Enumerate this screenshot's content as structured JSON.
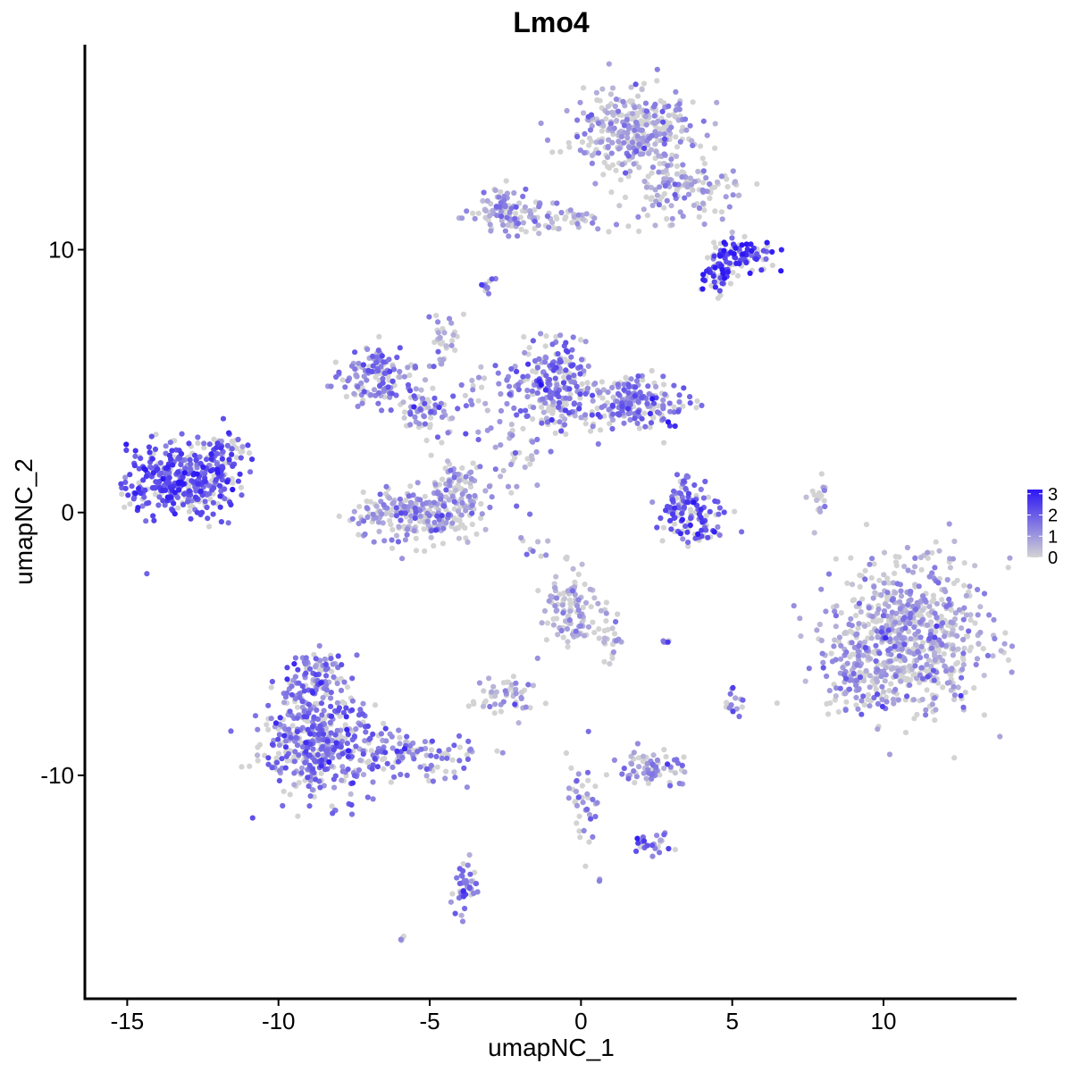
{
  "chart_data": {
    "type": "scatter",
    "title": "Lmo4",
    "xlabel": "umapNC_1",
    "ylabel": "umapNC_2",
    "xlim": [
      -16.4,
      14.4
    ],
    "ylim": [
      -18.5,
      17.8
    ],
    "x_ticks": [
      -15,
      -10,
      -5,
      0,
      5,
      10
    ],
    "x_tick_labels": [
      "-15",
      "-10",
      "-5",
      "0",
      "5",
      "10"
    ],
    "y_ticks": [
      -10,
      0,
      10
    ],
    "y_tick_labels": [
      "-10",
      "0",
      "10"
    ],
    "grid": false,
    "color_scale": {
      "low": "#d3d3d3",
      "high": "#2d17f4",
      "min": 0,
      "max": 3.2,
      "legend_ticks": [
        0,
        1,
        2,
        3
      ],
      "legend_tick_labels": [
        "0",
        "1",
        "2",
        "3"
      ],
      "legend_position": "right"
    },
    "clusters": [
      {
        "cx": -13.3,
        "cy": 1.2,
        "sx": 0.85,
        "sy": 0.75,
        "n": 380,
        "expr": 2.2
      },
      {
        "cx": -12.0,
        "cy": 1.9,
        "sx": 0.35,
        "sy": 0.6,
        "n": 40,
        "expr": 1.9
      },
      {
        "cx": -8.7,
        "cy": -8.7,
        "sx": 0.95,
        "sy": 1.05,
        "n": 450,
        "expr": 1.6
      },
      {
        "cx": -8.8,
        "cy": -6.2,
        "sx": 0.5,
        "sy": 0.6,
        "n": 80,
        "expr": 1.7
      },
      {
        "cx": -5.6,
        "cy": -9.3,
        "sx": 1.1,
        "sy": 0.45,
        "n": 110,
        "expr": 1.4
      },
      {
        "cx": -3.8,
        "cy": -14.3,
        "sx": 0.2,
        "sy": 0.6,
        "n": 45,
        "expr": 1.5
      },
      {
        "cx": -6.6,
        "cy": 5.2,
        "sx": 0.65,
        "sy": 0.6,
        "n": 140,
        "expr": 1.4
      },
      {
        "cx": -5.0,
        "cy": 3.8,
        "sx": 0.5,
        "sy": 0.4,
        "n": 60,
        "expr": 1.5
      },
      {
        "cx": -5.3,
        "cy": -0.1,
        "sx": 1.15,
        "sy": 0.55,
        "n": 260,
        "expr": 1.0
      },
      {
        "cx": -4.1,
        "cy": 1.1,
        "sx": 0.45,
        "sy": 0.55,
        "n": 60,
        "expr": 1.0
      },
      {
        "cx": -4.5,
        "cy": 6.5,
        "sx": 0.25,
        "sy": 0.6,
        "n": 30,
        "expr": 0.9
      },
      {
        "cx": -0.9,
        "cy": 4.9,
        "sx": 0.65,
        "sy": 0.9,
        "n": 240,
        "expr": 1.5
      },
      {
        "cx": 1.8,
        "cy": 4.2,
        "sx": 0.85,
        "sy": 0.5,
        "n": 200,
        "expr": 1.5
      },
      {
        "cx": -2.2,
        "cy": 2.5,
        "sx": 0.5,
        "sy": 1.0,
        "n": 40,
        "expr": 1.0
      },
      {
        "cx": 3.7,
        "cy": -0.1,
        "sx": 0.6,
        "sy": 0.55,
        "n": 110,
        "expr": 2.0
      },
      {
        "cx": 3.4,
        "cy": 0.8,
        "sx": 0.2,
        "sy": 0.4,
        "n": 25,
        "expr": 1.9
      },
      {
        "cx": 1.7,
        "cy": 14.5,
        "sx": 1.0,
        "sy": 0.85,
        "n": 340,
        "expr": 0.8
      },
      {
        "cx": 3.5,
        "cy": 12.2,
        "sx": 0.9,
        "sy": 0.6,
        "n": 120,
        "expr": 0.7
      },
      {
        "cx": -2.4,
        "cy": 11.5,
        "sx": 0.6,
        "sy": 0.45,
        "n": 90,
        "expr": 1.0
      },
      {
        "cx": -0.2,
        "cy": 11.1,
        "sx": 1.0,
        "sy": 0.25,
        "n": 50,
        "expr": 0.6
      },
      {
        "cx": 5.3,
        "cy": 9.8,
        "sx": 0.55,
        "sy": 0.3,
        "n": 90,
        "expr": 2.7
      },
      {
        "cx": 4.5,
        "cy": 8.9,
        "sx": 0.3,
        "sy": 0.3,
        "n": 45,
        "expr": 2.8
      },
      {
        "cx": 10.9,
        "cy": -4.7,
        "sx": 1.3,
        "sy": 1.5,
        "n": 700,
        "expr": 0.8
      },
      {
        "cx": 9.2,
        "cy": -6.1,
        "sx": 0.5,
        "sy": 0.7,
        "n": 80,
        "expr": 1.2
      },
      {
        "cx": -0.3,
        "cy": -3.6,
        "sx": 0.5,
        "sy": 0.7,
        "n": 110,
        "expr": 0.5
      },
      {
        "cx": 1.0,
        "cy": -4.7,
        "sx": 0.3,
        "sy": 0.6,
        "n": 25,
        "expr": 0.6
      },
      {
        "cx": -2.4,
        "cy": -7.0,
        "sx": 0.55,
        "sy": 0.4,
        "n": 50,
        "expr": 0.8
      },
      {
        "cx": 2.3,
        "cy": -9.7,
        "sx": 0.55,
        "sy": 0.3,
        "n": 70,
        "expr": 1.2
      },
      {
        "cx": 0.0,
        "cy": -11.1,
        "sx": 0.3,
        "sy": 1.0,
        "n": 40,
        "expr": 1.1
      },
      {
        "cx": 2.3,
        "cy": -12.6,
        "sx": 0.3,
        "sy": 0.3,
        "n": 25,
        "expr": 1.8
      },
      {
        "cx": 5.0,
        "cy": -7.3,
        "sx": 0.2,
        "sy": 0.3,
        "n": 15,
        "expr": 1.2
      },
      {
        "cx": 7.9,
        "cy": 0.4,
        "sx": 0.15,
        "sy": 0.5,
        "n": 18,
        "expr": 0.2
      },
      {
        "cx": -11.6,
        "cy": 2.4,
        "sx": 0.25,
        "sy": 0.35,
        "n": 15,
        "expr": 1.6
      },
      {
        "cx": -3.1,
        "cy": 8.7,
        "sx": 0.1,
        "sy": 0.15,
        "n": 10,
        "expr": 1.5
      },
      {
        "cx": -1.7,
        "cy": -1.3,
        "sx": 0.5,
        "sy": 0.3,
        "n": 10,
        "expr": 1.0
      },
      {
        "cx": -3.4,
        "cy": 4.6,
        "sx": 0.3,
        "sy": 0.5,
        "n": 15,
        "expr": 0.8
      },
      {
        "cx": 2.8,
        "cy": -5.0,
        "sx": 0.1,
        "sy": 0.1,
        "n": 5,
        "expr": 2.0
      },
      {
        "cx": 0.6,
        "cy": -14.0,
        "sx": 0.05,
        "sy": 0.05,
        "n": 3,
        "expr": 1.5
      },
      {
        "cx": -6.0,
        "cy": -16.2,
        "sx": 0.1,
        "sy": 0.1,
        "n": 4,
        "expr": 0.8
      }
    ]
  }
}
